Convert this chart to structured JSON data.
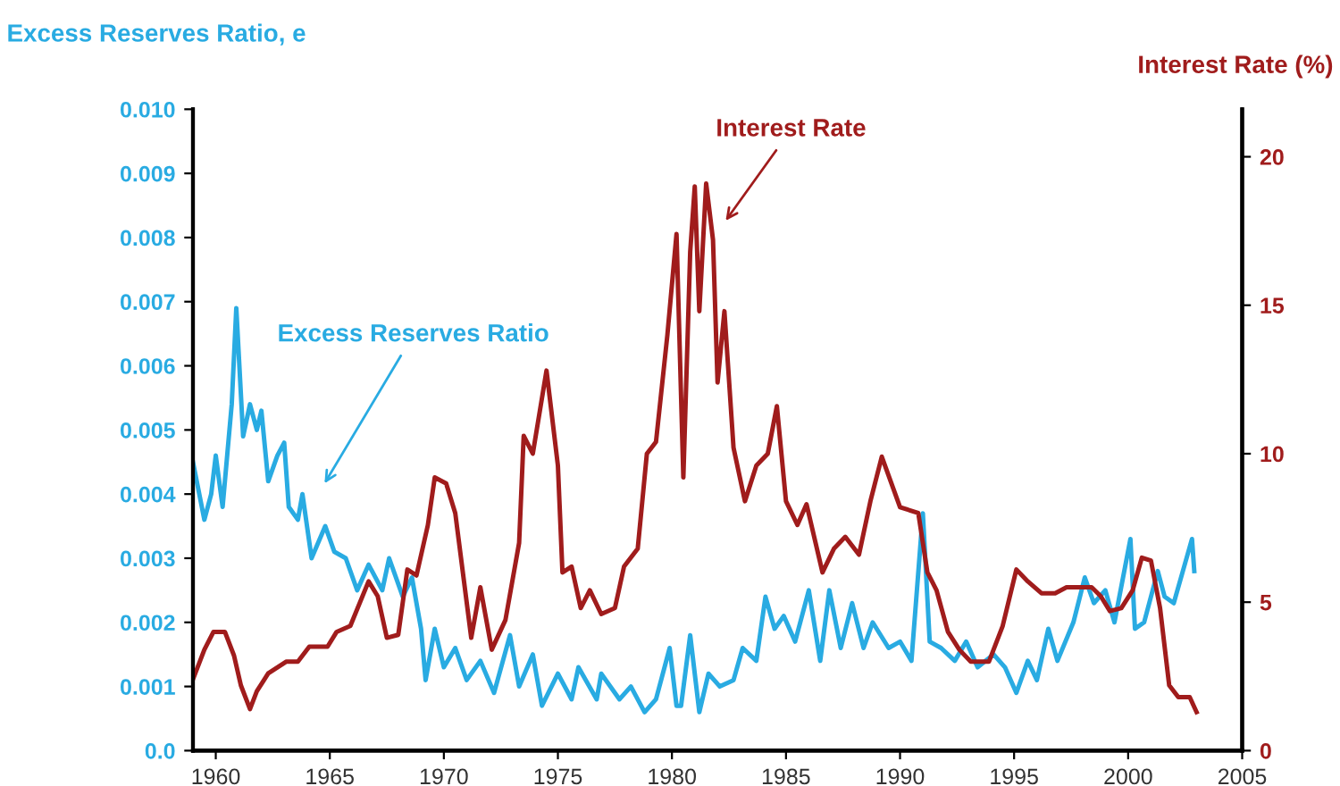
{
  "chart_data": {
    "type": "line",
    "xlim": [
      1959,
      2005
    ],
    "xticks": [
      1960,
      1965,
      1970,
      1975,
      1980,
      1985,
      1990,
      1995,
      2000,
      2005
    ],
    "ylabel": "Excess Reserves Ratio, e",
    "y2label": "Interest Rate (%)",
    "ylim": [
      0,
      0.01
    ],
    "yticks": [
      {
        "value": 0,
        "label": "0.0"
      },
      0.001,
      0.002,
      0.003,
      0.004,
      0.005,
      0.006,
      0.007,
      0.008,
      0.009,
      {
        "value": 0.01,
        "label": "0.010"
      }
    ],
    "y2lim": [
      0,
      21.6
    ],
    "y2ticks": [
      0,
      5,
      10,
      15,
      20
    ],
    "grid": false,
    "legend": false,
    "annotations": [
      "Excess Reserves Ratio",
      "Interest Rate"
    ],
    "series": [
      {
        "color": "#29abe2",
        "x": [
          1959.0,
          1959.5,
          1959.8,
          1960.0,
          1960.3,
          1960.7,
          1960.9,
          1961.2,
          1961.5,
          1961.8,
          1962.0,
          1962.3,
          1962.7,
          1963.0,
          1963.2,
          1963.6,
          1963.8,
          1964.2,
          1964.8,
          1965.2,
          1965.7,
          1966.2,
          1966.7,
          1967.3,
          1967.6,
          1968.2,
          1968.6,
          1969.0,
          1969.2,
          1969.6,
          1970.0,
          1970.5,
          1971.0,
          1971.6,
          1972.2,
          1972.9,
          1973.3,
          1973.9,
          1974.3,
          1975.0,
          1975.6,
          1975.9,
          1976.7,
          1976.9,
          1977.7,
          1978.2,
          1978.8,
          1979.3,
          1979.9,
          1980.2,
          1980.4,
          1980.8,
          1981.2,
          1981.6,
          1982.1,
          1982.7,
          1983.1,
          1983.7,
          1984.1,
          1984.5,
          1984.9,
          1985.4,
          1986.0,
          1986.5,
          1986.9,
          1987.4,
          1987.9,
          1988.4,
          1988.8,
          1989.5,
          1990.0,
          1990.5,
          1991.0,
          1991.3,
          1991.8,
          1992.4,
          1992.9,
          1993.4,
          1994.1,
          1994.6,
          1995.1,
          1995.6,
          1996.0,
          1996.5,
          1996.9,
          1997.6,
          1998.1,
          1998.5,
          1999.0,
          1999.4,
          2000.1,
          2000.3,
          2000.7,
          2001.3,
          2001.6,
          2002.0,
          2002.4,
          2002.8,
          2002.9
        ],
        "values": [
          0.0045,
          0.0036,
          0.004,
          0.0046,
          0.0038,
          0.0054,
          0.0069,
          0.0049,
          0.0054,
          0.005,
          0.0053,
          0.0042,
          0.0046,
          0.0048,
          0.0038,
          0.0036,
          0.004,
          0.003,
          0.0035,
          0.0031,
          0.003,
          0.0025,
          0.0029,
          0.0025,
          0.003,
          0.0024,
          0.0027,
          0.0019,
          0.0011,
          0.0019,
          0.0013,
          0.0016,
          0.0011,
          0.0014,
          0.0009,
          0.0018,
          0.001,
          0.0015,
          0.0007,
          0.0012,
          0.0008,
          0.0013,
          0.0008,
          0.0012,
          0.0008,
          0.001,
          0.0006,
          0.0008,
          0.0016,
          0.0007,
          0.0007,
          0.0018,
          0.0006,
          0.0012,
          0.001,
          0.0011,
          0.0016,
          0.0014,
          0.0024,
          0.0019,
          0.0021,
          0.0017,
          0.0025,
          0.0014,
          0.0025,
          0.0016,
          0.0023,
          0.0016,
          0.002,
          0.0016,
          0.0017,
          0.0014,
          0.0037,
          0.0017,
          0.0016,
          0.0014,
          0.0017,
          0.0013,
          0.0015,
          0.0013,
          0.0009,
          0.0014,
          0.0011,
          0.0019,
          0.0014,
          0.002,
          0.0027,
          0.0023,
          0.0025,
          0.002,
          0.0033,
          0.0019,
          0.002,
          0.0028,
          0.0024,
          0.0023,
          0.0028,
          0.0033,
          0.0028
        ]
      },
      {
        "color": "#a01c1c",
        "axis": "y2",
        "x": [
          1959.0,
          1959.5,
          1959.9,
          1960.4,
          1960.8,
          1961.1,
          1961.5,
          1961.8,
          1962.3,
          1963.1,
          1963.6,
          1964.1,
          1964.9,
          1965.3,
          1965.9,
          1966.7,
          1967.1,
          1967.5,
          1968.0,
          1968.4,
          1968.8,
          1969.3,
          1969.6,
          1970.1,
          1970.5,
          1971.2,
          1971.6,
          1972.1,
          1972.7,
          1973.3,
          1973.5,
          1973.9,
          1974.5,
          1975.0,
          1975.2,
          1975.6,
          1976.0,
          1976.4,
          1976.9,
          1977.5,
          1977.9,
          1978.5,
          1978.9,
          1979.3,
          1979.8,
          1980.2,
          1980.5,
          1980.8,
          1981.0,
          1981.2,
          1981.5,
          1981.8,
          1982.0,
          1982.3,
          1982.7,
          1983.2,
          1983.7,
          1984.2,
          1984.6,
          1985.0,
          1985.5,
          1985.9,
          1986.6,
          1987.1,
          1987.6,
          1988.2,
          1988.7,
          1989.2,
          1990.0,
          1990.8,
          1991.2,
          1991.6,
          1992.1,
          1992.6,
          1993.1,
          1993.9,
          1994.5,
          1995.1,
          1995.6,
          1996.2,
          1996.8,
          1997.3,
          1998.4,
          1998.8,
          1999.2,
          1999.7,
          2000.2,
          2000.6,
          2001.0,
          2001.4,
          2001.8,
          2002.2,
          2002.7,
          2003.0
        ],
        "values": [
          2.4,
          3.4,
          4.0,
          4.0,
          3.2,
          2.2,
          1.4,
          2.0,
          2.6,
          3.0,
          3.0,
          3.5,
          3.5,
          4.0,
          4.2,
          5.7,
          5.2,
          3.8,
          3.9,
          6.1,
          5.9,
          7.6,
          9.2,
          9.0,
          8.0,
          3.8,
          5.5,
          3.4,
          4.4,
          7.0,
          10.6,
          10.0,
          12.8,
          9.6,
          6.0,
          6.2,
          4.8,
          5.4,
          4.6,
          4.8,
          6.2,
          6.8,
          10.0,
          10.4,
          14.0,
          17.4,
          9.2,
          16.8,
          19.0,
          14.8,
          19.1,
          17.2,
          12.4,
          14.8,
          10.2,
          8.4,
          9.6,
          10.0,
          11.6,
          8.4,
          7.6,
          8.3,
          6.0,
          6.8,
          7.2,
          6.6,
          8.4,
          9.9,
          8.2,
          8.0,
          6.0,
          5.4,
          4.0,
          3.4,
          3.0,
          3.0,
          4.2,
          6.1,
          5.7,
          5.3,
          5.3,
          5.5,
          5.5,
          5.2,
          4.7,
          4.8,
          5.4,
          6.5,
          6.4,
          4.8,
          2.2,
          1.8,
          1.8,
          1.3
        ]
      }
    ]
  }
}
